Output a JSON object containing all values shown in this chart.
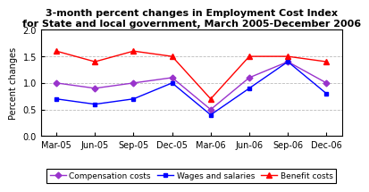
{
  "x_labels": [
    "Mar-05",
    "Jun-05",
    "Sep-05",
    "Dec-05",
    "Mar-06",
    "Jun-06",
    "Sep-06",
    "Dec-06"
  ],
  "compensation_costs": [
    1.0,
    0.9,
    1.0,
    1.1,
    0.5,
    1.1,
    1.4,
    1.0
  ],
  "wages_and_salaries": [
    0.7,
    0.6,
    0.7,
    1.0,
    0.4,
    0.9,
    1.4,
    0.8
  ],
  "benefit_costs": [
    1.6,
    1.4,
    1.6,
    1.5,
    0.7,
    1.5,
    1.5,
    1.4
  ],
  "compensation_color": "#9933CC",
  "wages_color": "#0000FF",
  "benefit_color": "#FF0000",
  "title_line1": "3-month percent changes in Employment Cost Index",
  "title_line2": "for State and local government, March 2005-December 2006",
  "ylabel": "Percent changes",
  "ylim": [
    0.0,
    2.0
  ],
  "yticks": [
    0.0,
    0.5,
    1.0,
    1.5,
    2.0
  ],
  "legend_labels": [
    "Compensation costs",
    "Wages and salaries",
    "Benefit costs"
  ],
  "background_color": "#ffffff",
  "grid_color": "#bbbbbb",
  "title_fontsize": 8,
  "tick_fontsize": 7,
  "ylabel_fontsize": 7,
  "legend_fontsize": 6.5
}
